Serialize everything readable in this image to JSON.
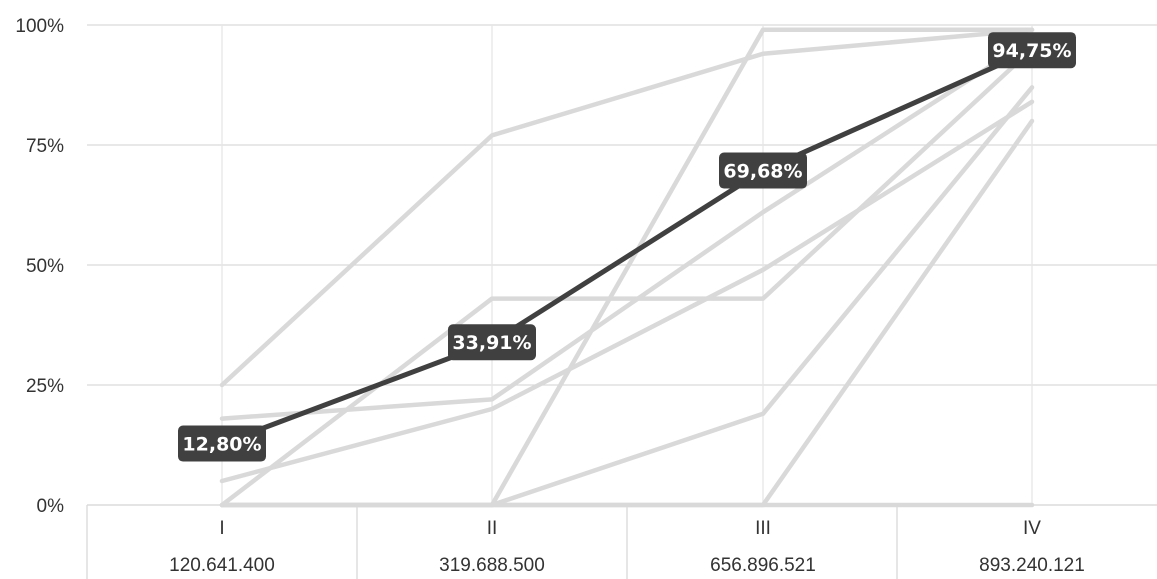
{
  "chart_data": {
    "type": "line",
    "categories": [
      "I",
      "II",
      "III",
      "IV"
    ],
    "category_sublabels": [
      "120.641.400",
      "319.688.500",
      "656.896.521",
      "893.240.121"
    ],
    "ylim": [
      0,
      100
    ],
    "yticks": [
      "0%",
      "25%",
      "50%",
      "75%",
      "100%"
    ],
    "grid": true,
    "highlight_series": {
      "values": [
        12.8,
        33.91,
        69.68,
        94.75
      ],
      "data_labels": [
        "12,80%",
        "33,91%",
        "69,68%",
        "94,75%"
      ],
      "color": "#404040"
    },
    "background_series": [
      {
        "values": [
          25,
          77,
          94,
          99
        ]
      },
      {
        "values": [
          18,
          22,
          61,
          97
        ]
      },
      {
        "values": [
          0,
          43,
          43,
          95
        ]
      },
      {
        "values": [
          5,
          20,
          49,
          84
        ]
      },
      {
        "values": [
          0,
          0,
          99,
          99
        ]
      },
      {
        "values": [
          0,
          0,
          19,
          87
        ]
      },
      {
        "values": [
          0,
          0,
          0,
          80
        ]
      },
      {
        "values": [
          0,
          0,
          0,
          0
        ]
      }
    ],
    "background_color": "#d9d9d9"
  }
}
